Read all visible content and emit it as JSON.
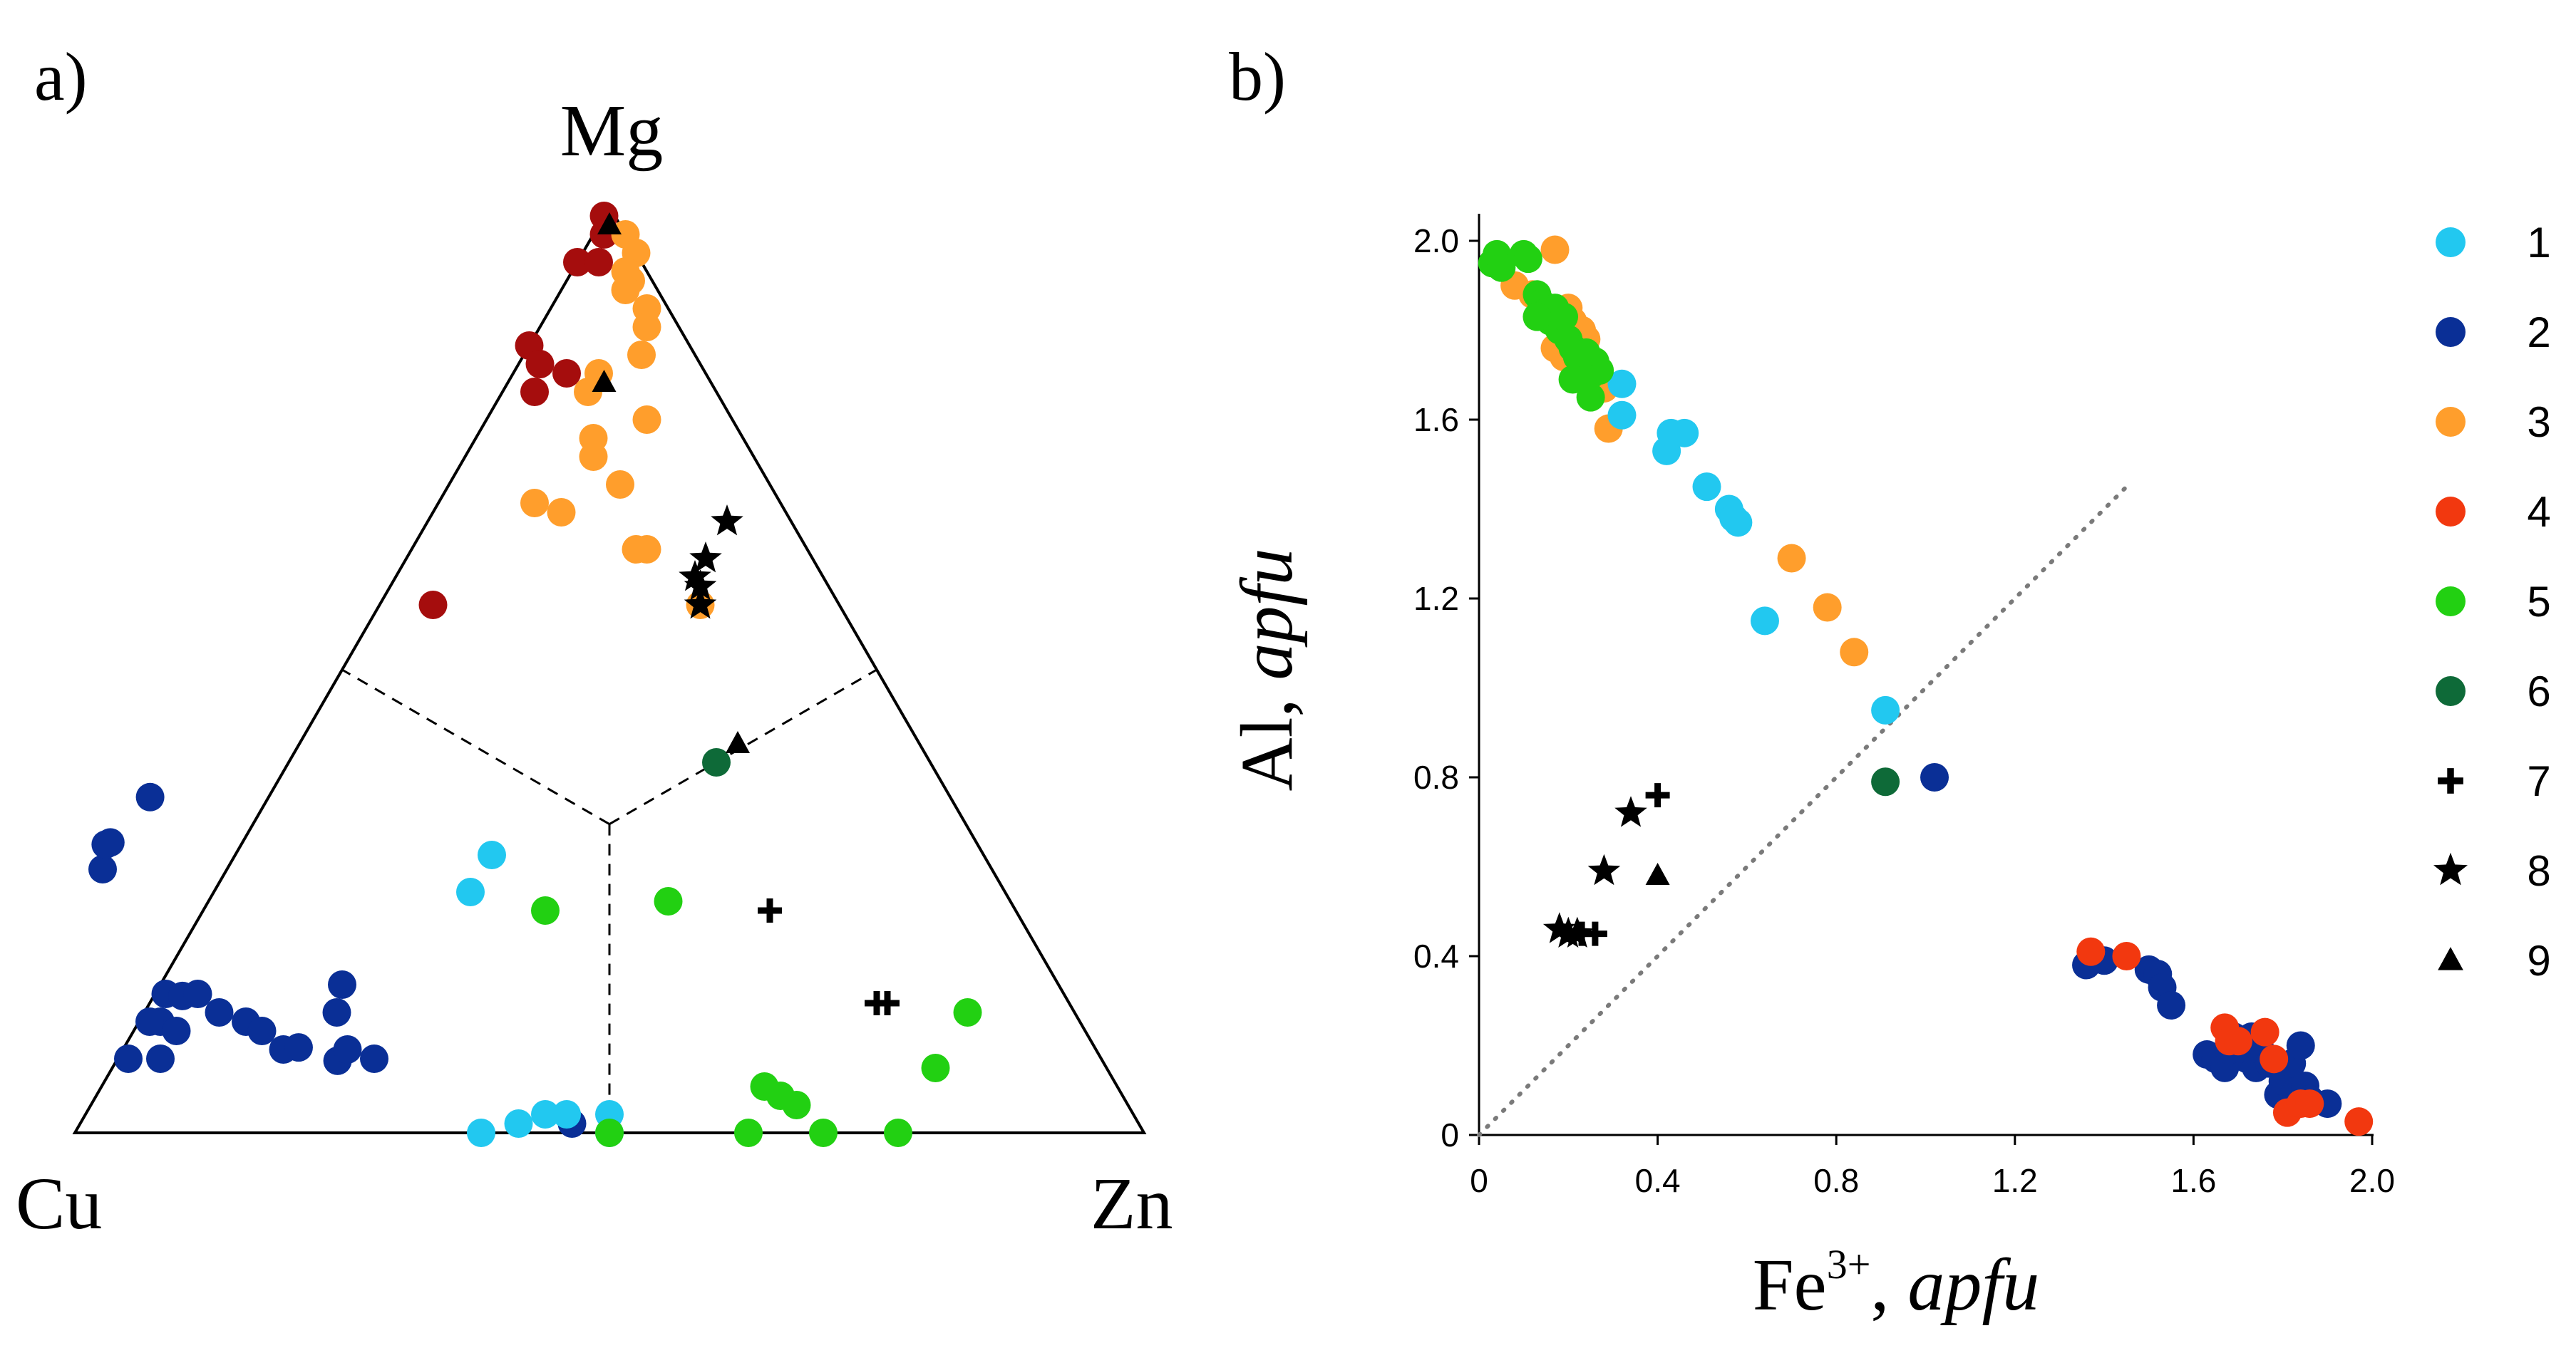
{
  "colors": {
    "1": "#22c8f0",
    "2": "#0a2f96",
    "3": "#ff9e2c",
    "4": "#f2380f",
    "5": "#22d012",
    "6": "#0e6a38",
    "7": "#000000",
    "8": "#000000",
    "9": "#000000",
    "mg_dark": "#a50d0d"
  },
  "chart_data": [
    {
      "type": "ternary-scatter",
      "panel_label": "a)",
      "vertices": {
        "top": "Mg",
        "left": "Cu",
        "right": "Zn"
      },
      "field_boundaries": "dashed lines from centroid (1/3,1/3,1/3) to the edge midpoints",
      "note": "coordinates are molar fractions [Cu, Zn, Mg]",
      "series": [
        {
          "name": "1",
          "marker": "circle",
          "color_key": "1",
          "points": [
            [
              0.5,
              0.24,
              0.26
            ],
            [
              0.46,
              0.24,
              0.3
            ],
            [
              0.62,
              0.38,
              0.0
            ],
            [
              0.58,
              0.41,
              0.01
            ],
            [
              0.55,
              0.43,
              0.02
            ],
            [
              0.53,
              0.45,
              0.02
            ],
            [
              0.49,
              0.49,
              0.02
            ],
            [
              0.5,
              0.5,
              0.0
            ]
          ]
        },
        {
          "name": "2",
          "marker": "circle",
          "color_key": "2",
          "points": [
            [
              0.91,
              0.01,
              0.08
            ],
            [
              0.74,
              0.02,
              0.04
            ],
            [
              0.71,
              0.03,
              0.03
            ],
            [
              0.7,
              0.04,
              0.02
            ],
            [
              0.62,
              0.08,
              0.02
            ],
            [
              0.53,
              0.46,
              0.01
            ],
            [
              0.86,
              0.02,
              0.12
            ],
            [
              0.84,
              0.01,
              0.15
            ],
            [
              0.83,
              0.02,
              0.16
            ],
            [
              0.81,
              0.04,
              0.15
            ],
            [
              0.8,
              0.07,
              0.13
            ],
            [
              0.78,
              0.1,
              0.12
            ],
            [
              0.77,
              0.12,
              0.11
            ],
            [
              0.76,
              0.15,
              0.09
            ],
            [
              0.74,
              0.17,
              0.08
            ],
            [
              0.72,
              0.2,
              0.09
            ],
            [
              0.7,
              0.21,
              0.09
            ],
            [
              0.68,
              0.24,
              0.08
            ],
            [
              0.69,
              0.18,
              0.13
            ],
            [
              0.67,
              0.17,
              0.16
            ],
            [
              0.88,
              0.04,
              0.08
            ],
            [
              0.87,
              0.01,
              0.12
            ],
            [
              0.85,
              0.04,
              0.11
            ]
          ]
        },
        {
          "name": "3",
          "marker": "circle",
          "color_key": "3",
          "points": [
            [
              0.0,
              0.03,
              0.97
            ],
            [
              0.0,
              0.05,
              0.95
            ],
            [
              0.02,
              0.05,
              0.93
            ],
            [
              0.02,
              0.06,
              0.92
            ],
            [
              0.03,
              0.06,
              0.91
            ],
            [
              0.02,
              0.09,
              0.89
            ],
            [
              0.03,
              0.1,
              0.87
            ],
            [
              0.05,
              0.11,
              0.84
            ],
            [
              0.1,
              0.08,
              0.82
            ],
            [
              0.12,
              0.08,
              0.8
            ],
            [
              0.14,
              0.11,
              0.75
            ],
            [
              0.15,
              0.12,
              0.73
            ],
            [
              0.14,
              0.16,
              0.7
            ],
            [
              0.15,
              0.22,
              0.63
            ],
            [
              0.23,
              0.09,
              0.68
            ],
            [
              0.21,
              0.12,
              0.67
            ],
            [
              0.16,
              0.21,
              0.63
            ],
            [
              0.13,
              0.3,
              0.57
            ],
            [
              0.08,
              0.15,
              0.77
            ]
          ]
        },
        {
          "name": "4",
          "marker": "circle",
          "color_key": "mg_dark",
          "points": [
            [
              0.01,
              0.0,
              0.99
            ],
            [
              0.02,
              0.01,
              0.97
            ],
            [
              0.06,
              0.0,
              0.94
            ],
            [
              0.04,
              0.02,
              0.94
            ],
            [
              0.15,
              0.0,
              0.85
            ],
            [
              0.15,
              0.02,
              0.83
            ],
            [
              0.13,
              0.05,
              0.82
            ],
            [
              0.17,
              0.03,
              0.8
            ],
            [
              0.38,
              0.05,
              0.57
            ]
          ]
        },
        {
          "name": "5",
          "marker": "circle",
          "color_key": "5",
          "points": [
            [
              0.44,
              0.32,
              0.24
            ],
            [
              0.32,
              0.43,
              0.25
            ],
            [
              0.5,
              0.5,
              0.0
            ],
            [
              0.37,
              0.63,
              0.0
            ],
            [
              0.3,
              0.7,
              0.0
            ],
            [
              0.23,
              0.77,
              0.0
            ],
            [
              0.33,
              0.62,
              0.05
            ],
            [
              0.32,
              0.64,
              0.04
            ],
            [
              0.31,
              0.66,
              0.03
            ],
            [
              0.16,
              0.77,
              0.07
            ],
            [
              0.1,
              0.77,
              0.13
            ]
          ]
        },
        {
          "name": "6",
          "marker": "circle",
          "color_key": "6",
          "points": [
            [
              0.2,
              0.4,
              0.4
            ]
          ]
        },
        {
          "name": "7",
          "marker": "plus",
          "color_key": "7",
          "points": [
            [
              0.23,
              0.53,
              0.24
            ],
            [
              0.18,
              0.68,
              0.14
            ],
            [
              0.17,
              0.69,
              0.14
            ]
          ]
        },
        {
          "name": "8",
          "marker": "star",
          "color_key": "8",
          "points": [
            [
              0.12,
              0.28,
              0.6
            ],
            [
              0.12,
              0.29,
              0.59
            ],
            [
              0.06,
              0.28,
              0.66
            ],
            [
              0.1,
              0.28,
              0.62
            ],
            [
              0.13,
              0.3,
              0.57
            ]
          ]
        },
        {
          "name": "9",
          "marker": "triangle",
          "color_key": "9",
          "points": [
            [
              0.01,
              0.01,
              0.98
            ],
            [
              0.1,
              0.09,
              0.81
            ],
            [
              0.17,
              0.41,
              0.42
            ]
          ]
        }
      ]
    },
    {
      "type": "scatter",
      "panel_label": "b)",
      "xlabel_main": "Fe",
      "xlabel_sup": "3+",
      "xlabel_sep": ", ",
      "xlabel_unit": "apfu",
      "ylabel_main": "Al, ",
      "ylabel_unit": "apfu",
      "xlim": [
        0,
        2.0
      ],
      "ylim": [
        0,
        2.0
      ],
      "xticks": [
        "0",
        "0.4",
        "0.8",
        "1.2",
        "1.6",
        "2.0"
      ],
      "xtick_values": [
        0,
        0.4,
        0.8,
        1.2,
        1.6,
        2.0
      ],
      "yticks": [
        "0",
        "0.4",
        "0.8",
        "1.2",
        "1.6",
        "2.0"
      ],
      "ytick_values": [
        0,
        0.4,
        0.8,
        1.2,
        1.6,
        2.0
      ],
      "reference_line": {
        "style": "dotted",
        "from": [
          0.0,
          0.0
        ],
        "to": [
          1.45,
          1.45
        ]
      },
      "legend": [
        {
          "label": "1",
          "marker": "circle",
          "color_key": "1"
        },
        {
          "label": "2",
          "marker": "circle",
          "color_key": "2"
        },
        {
          "label": "3",
          "marker": "circle",
          "color_key": "3"
        },
        {
          "label": "4",
          "marker": "circle",
          "color_key": "4"
        },
        {
          "label": "5",
          "marker": "circle",
          "color_key": "5"
        },
        {
          "label": "6",
          "marker": "circle",
          "color_key": "6"
        },
        {
          "label": "7",
          "marker": "plus",
          "color_key": "7"
        },
        {
          "label": "8",
          "marker": "star",
          "color_key": "8"
        },
        {
          "label": "9",
          "marker": "triangle",
          "color_key": "9"
        }
      ],
      "series": [
        {
          "name": "1",
          "marker": "circle",
          "color_key": "1",
          "points": [
            [
              0.32,
              1.68
            ],
            [
              0.32,
              1.61
            ],
            [
              0.42,
              1.53
            ],
            [
              0.43,
              1.57
            ],
            [
              0.46,
              1.57
            ],
            [
              0.51,
              1.45
            ],
            [
              0.56,
              1.4
            ],
            [
              0.57,
              1.38
            ],
            [
              0.58,
              1.37
            ],
            [
              0.64,
              1.15
            ],
            [
              0.91,
              0.95
            ]
          ]
        },
        {
          "name": "2",
          "marker": "circle",
          "color_key": "2",
          "points": [
            [
              1.02,
              0.8
            ],
            [
              1.36,
              0.38
            ],
            [
              1.4,
              0.39
            ],
            [
              1.5,
              0.37
            ],
            [
              1.52,
              0.36
            ],
            [
              1.53,
              0.33
            ],
            [
              1.55,
              0.29
            ],
            [
              1.63,
              0.18
            ],
            [
              1.65,
              0.17
            ],
            [
              1.67,
              0.15
            ],
            [
              1.69,
              0.22
            ],
            [
              1.7,
              0.2
            ],
            [
              1.72,
              0.17
            ],
            [
              1.73,
              0.22
            ],
            [
              1.74,
              0.15
            ],
            [
              1.75,
              0.19
            ],
            [
              1.77,
              0.16
            ],
            [
              1.79,
              0.09
            ],
            [
              1.8,
              0.12
            ],
            [
              1.82,
              0.16
            ],
            [
              1.84,
              0.2
            ],
            [
              1.85,
              0.11
            ],
            [
              1.86,
              0.08
            ],
            [
              1.9,
              0.07
            ],
            [
              1.68,
              0.19
            ]
          ]
        },
        {
          "name": "3",
          "marker": "circle",
          "color_key": "3",
          "points": [
            [
              0.17,
              1.98
            ],
            [
              0.08,
              1.9
            ],
            [
              0.12,
              1.88
            ],
            [
              0.18,
              1.84
            ],
            [
              0.2,
              1.85
            ],
            [
              0.21,
              1.82
            ],
            [
              0.23,
              1.8
            ],
            [
              0.24,
              1.78
            ],
            [
              0.17,
              1.76
            ],
            [
              0.19,
              1.74
            ],
            [
              0.22,
              1.72
            ],
            [
              0.25,
              1.7
            ],
            [
              0.28,
              1.67
            ],
            [
              0.29,
              1.58
            ],
            [
              0.7,
              1.29
            ],
            [
              0.78,
              1.18
            ],
            [
              0.84,
              1.08
            ]
          ]
        },
        {
          "name": "4",
          "marker": "circle",
          "color_key": "4",
          "points": [
            [
              1.37,
              0.41
            ],
            [
              1.45,
              0.4
            ],
            [
              1.67,
              0.24
            ],
            [
              1.68,
              0.21
            ],
            [
              1.7,
              0.21
            ],
            [
              1.76,
              0.23
            ],
            [
              1.78,
              0.17
            ],
            [
              1.81,
              0.05
            ],
            [
              1.84,
              0.07
            ],
            [
              1.86,
              0.07
            ],
            [
              1.97,
              0.03
            ]
          ]
        },
        {
          "name": "5",
          "marker": "circle",
          "color_key": "5",
          "points": [
            [
              0.03,
              1.95
            ],
            [
              0.04,
              1.97
            ],
            [
              0.05,
              1.94
            ],
            [
              0.1,
              1.97
            ],
            [
              0.11,
              1.96
            ],
            [
              0.13,
              1.88
            ],
            [
              0.14,
              1.86
            ],
            [
              0.15,
              1.84
            ],
            [
              0.16,
              1.82
            ],
            [
              0.17,
              1.85
            ],
            [
              0.18,
              1.8
            ],
            [
              0.19,
              1.83
            ],
            [
              0.2,
              1.78
            ],
            [
              0.21,
              1.76
            ],
            [
              0.22,
              1.74
            ],
            [
              0.23,
              1.72
            ],
            [
              0.24,
              1.69
            ],
            [
              0.25,
              1.7
            ],
            [
              0.26,
              1.73
            ],
            [
              0.27,
              1.71
            ],
            [
              0.25,
              1.65
            ],
            [
              0.13,
              1.83
            ],
            [
              0.21,
              1.69
            ],
            [
              0.24,
              1.75
            ]
          ]
        },
        {
          "name": "6",
          "marker": "circle",
          "color_key": "6",
          "points": [
            [
              0.91,
              0.79
            ]
          ]
        },
        {
          "name": "7",
          "marker": "plus",
          "color_key": "7",
          "points": [
            [
              0.4,
              0.76
            ],
            [
              0.23,
              0.45
            ],
            [
              0.26,
              0.45
            ]
          ]
        },
        {
          "name": "8",
          "marker": "star",
          "color_key": "8",
          "points": [
            [
              0.34,
              0.72
            ],
            [
              0.28,
              0.59
            ],
            [
              0.18,
              0.46
            ],
            [
              0.2,
              0.45
            ],
            [
              0.22,
              0.45
            ]
          ]
        },
        {
          "name": "9",
          "marker": "triangle",
          "color_key": "9",
          "points": [
            [
              0.4,
              0.58
            ]
          ]
        }
      ]
    }
  ]
}
